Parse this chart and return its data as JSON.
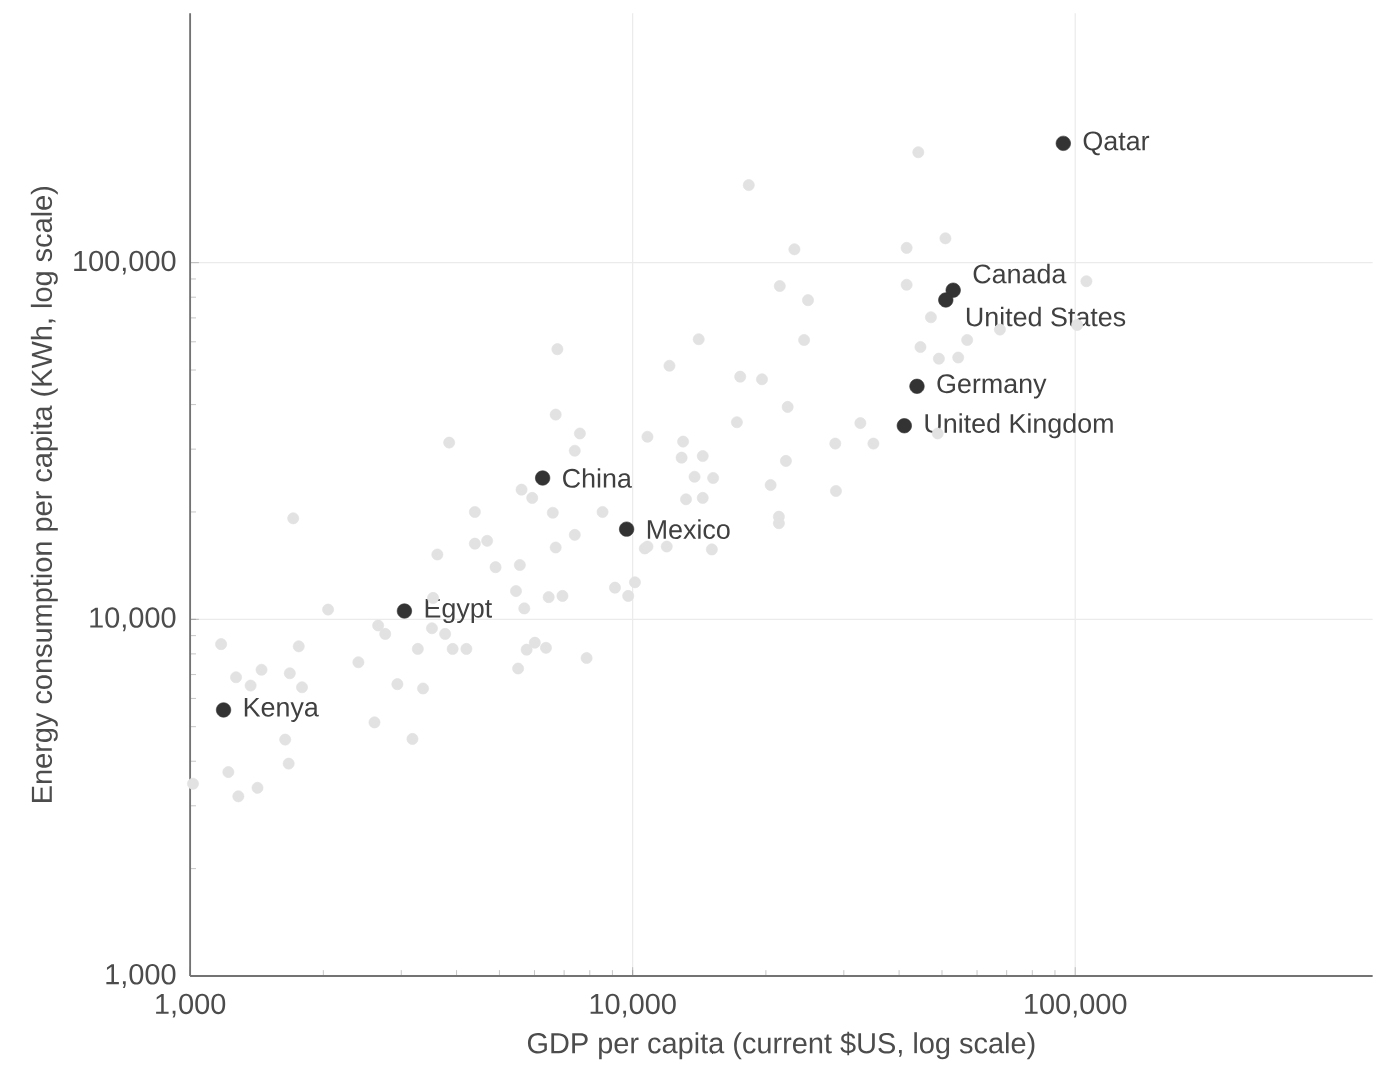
{
  "chart_data": {
    "type": "scatter",
    "xlabel": "GDP per capita (current $US, log scale)",
    "ylabel": "Energy consumption per capita (KWh, log scale)",
    "log": "xy",
    "grid": true,
    "marker": "circle",
    "xlim": [
      1000,
      470000
    ],
    "ylim": [
      1000,
      500000
    ],
    "xticks": [
      {
        "value": 1000,
        "label": "1,000"
      },
      {
        "value": 10000,
        "label": "10,000"
      },
      {
        "value": 100000,
        "label": "100,000"
      }
    ],
    "yticks": [
      {
        "value": 1000,
        "label": "1,000"
      },
      {
        "value": 10000,
        "label": "10,000"
      },
      {
        "value": 100000,
        "label": "100,000"
      }
    ],
    "series": [
      {
        "color": "#e2e2e2",
        "x": [
          6760,
          6700,
          7600,
          7400,
          3850,
          10800,
          5610,
          5930,
          4400,
          1710,
          6600,
          8550,
          10650,
          7400,
          6700,
          4400,
          4690,
          3620,
          4900,
          5560,
          9120,
          10120,
          9770,
          6460,
          6940,
          5450,
          5690,
          3540,
          2050,
          2660,
          2760,
          3520,
          3770,
          3920,
          4210,
          3270,
          5760,
          6010,
          6370,
          5510,
          7870,
          2400,
          2940,
          3360,
          2610,
          3180,
          1175,
          1760,
          1270,
          1370,
          1450,
          1680,
          1790,
          1640,
          1670,
          1220,
          1015,
          1285,
          1420,
          44200,
          18300,
          23200,
          41600,
          50900,
          41600,
          106000,
          21500,
          24900,
          47200,
          67600,
          101000,
          57000,
          24400,
          14100,
          44700,
          49200,
          54400,
          12110,
          17500,
          19600,
          22400,
          17200,
          32700,
          35000,
          28700,
          48900,
          13000,
          12900,
          14400,
          22200,
          13800,
          15200,
          20500,
          28800,
          13200,
          14400,
          21400,
          21400,
          10800,
          11940,
          15100
        ],
        "values": [
          57200,
          37500,
          33200,
          29700,
          31300,
          32500,
          23100,
          21900,
          20000,
          19200,
          19900,
          20000,
          15800,
          17250,
          15900,
          16300,
          16600,
          15200,
          14000,
          14200,
          12270,
          12700,
          11630,
          11540,
          11630,
          12000,
          10730,
          11480,
          10650,
          9610,
          9100,
          9440,
          9100,
          8260,
          8260,
          8260,
          8220,
          8600,
          8320,
          7280,
          7790,
          7580,
          6580,
          6400,
          5140,
          4620,
          8520,
          8400,
          6880,
          6520,
          7220,
          7060,
          6450,
          4600,
          3940,
          3730,
          3460,
          3190,
          3370,
          204000,
          165000,
          109000,
          110000,
          117000,
          86700,
          88700,
          86000,
          78500,
          70300,
          64900,
          66900,
          60700,
          60700,
          61000,
          58000,
          53800,
          54200,
          51400,
          47900,
          47100,
          39400,
          35700,
          35500,
          31100,
          31100,
          33200,
          31500,
          28400,
          28700,
          27800,
          25100,
          24900,
          23800,
          22900,
          21700,
          21900,
          19400,
          18600,
          16000,
          16000,
          15700
        ]
      },
      {
        "color": "#333333",
        "x": [
          94000,
          53000,
          51000,
          43900,
          41100,
          6260,
          9690,
          3050,
          1190
        ],
        "values": [
          216000,
          83700,
          78600,
          45000,
          34900,
          24900,
          17900,
          10550,
          5570
        ]
      }
    ],
    "annotations": [
      {
        "text": "Qatar",
        "x": 94000,
        "y": 216000
      },
      {
        "text": "Canada",
        "x": 53000,
        "y": 83700
      },
      {
        "text": "United States",
        "x": 51000,
        "y": 78600
      },
      {
        "text": "Germany",
        "x": 43900,
        "y": 45000
      },
      {
        "text": "United Kingdom",
        "x": 41100,
        "y": 34900
      },
      {
        "text": "China",
        "x": 6260,
        "y": 24900
      },
      {
        "text": "Mexico",
        "x": 9690,
        "y": 17900
      },
      {
        "text": "Egypt",
        "x": 3050,
        "y": 10550
      },
      {
        "text": "Kenya",
        "x": 1190,
        "y": 5570
      }
    ]
  }
}
